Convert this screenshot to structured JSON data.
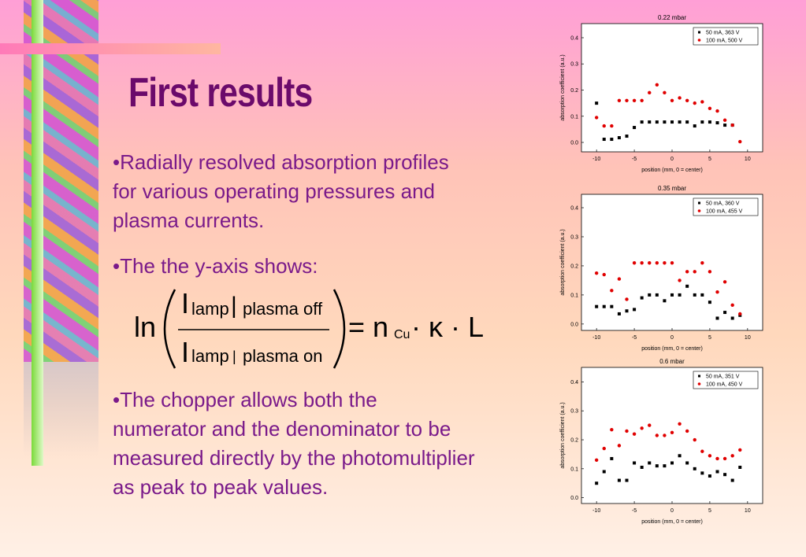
{
  "title": "First results",
  "bullets": [
    "•Radially resolved absorption profiles for various operating pressures and plasma currents.",
    "•The the y-axis shows:",
    "•The chopper allows both the numerator and the denominator to be measured directly by the photomultiplier as peak to peak values."
  ],
  "formula": {
    "ln": "ln",
    "I_num": "I",
    "lamp_num": "lamp",
    "bar_num": "|",
    "cond_num": "plasma off",
    "I_den": "I",
    "lamp_den": "lamp",
    "bar_den": "|",
    "cond_den": "plasma on",
    "eq": "= n",
    "sub": "Cu",
    "rest": "· κ · L"
  },
  "chart_data": [
    {
      "type": "scatter",
      "title": "0.22 mbar",
      "x_label": "position (mm, 0 = center)",
      "y_label": "absorption coefficient (a.u.)",
      "x": [
        -10,
        -9,
        -8,
        -7,
        -6,
        -5,
        -4,
        -3,
        -2,
        -1,
        0,
        1,
        2,
        3,
        4,
        5,
        6,
        7,
        8,
        9
      ],
      "series": [
        {
          "name": "50 mA, 363 V",
          "color": "#000000",
          "marker": "square",
          "values": [
            0.15,
            0.012,
            0.012,
            0.018,
            0.024,
            0.057,
            0.078,
            0.078,
            0.078,
            0.078,
            0.078,
            0.078,
            0.078,
            0.063,
            0.078,
            0.078,
            0.075,
            0.066,
            0.066,
            null
          ]
        },
        {
          "name": "100 mA, 500 V",
          "color": "#e00000",
          "marker": "circle",
          "values": [
            0.095,
            0.063,
            0.063,
            0.16,
            0.16,
            0.16,
            0.16,
            0.19,
            0.22,
            0.19,
            0.16,
            0.17,
            0.16,
            0.15,
            0.155,
            0.13,
            0.12,
            0.085,
            0.066,
            0.003
          ]
        }
      ],
      "xlim": [
        -12,
        12
      ],
      "ylim": [
        -0.036,
        0.454
      ],
      "xticks": [
        -10,
        -5,
        0,
        5,
        10
      ],
      "yticks": [
        {
          "value": 0,
          "label": "0.0"
        },
        0.1,
        0.2,
        0.3,
        0.4
      ],
      "legend": "upper right"
    },
    {
      "type": "scatter",
      "title": "0.35 mbar",
      "x_label": "position (mm, 0 = center)",
      "y_label": "absorption coefficient (a.u.)",
      "x": [
        -10,
        -9,
        -8,
        -7,
        -6,
        -5,
        -4,
        -3,
        -2,
        -1,
        0,
        1,
        2,
        3,
        4,
        5,
        6,
        7,
        8,
        9
      ],
      "series": [
        {
          "name": "50 mA, 360 V",
          "color": "#000000",
          "marker": "square",
          "values": [
            0.06,
            0.06,
            0.06,
            0.035,
            0.045,
            0.05,
            0.09,
            0.1,
            0.1,
            0.08,
            0.1,
            0.1,
            0.13,
            0.1,
            0.1,
            0.075,
            0.02,
            0.04,
            0.02,
            0.03
          ]
        },
        {
          "name": "100 mA, 455 V",
          "color": "#e00000",
          "marker": "circle",
          "values": [
            0.175,
            0.17,
            0.115,
            0.155,
            0.085,
            0.21,
            0.21,
            0.21,
            0.21,
            0.21,
            0.21,
            0.15,
            0.18,
            0.18,
            0.21,
            0.18,
            0.11,
            0.145,
            0.065,
            0.035
          ]
        }
      ],
      "xlim": [
        -12,
        12
      ],
      "ylim": [
        -0.022,
        0.446
      ],
      "xticks": [
        -10,
        -5,
        0,
        5,
        10
      ],
      "yticks": [
        {
          "value": 0,
          "label": "0.0"
        },
        0.1,
        0.2,
        0.3,
        0.4
      ],
      "legend": "upper right"
    },
    {
      "type": "scatter",
      "title": "0.6 mbar",
      "x_label": "position (mm, 0 = center)",
      "y_label": "absorption coefficient (a.u.)",
      "x": [
        -10,
        -9,
        -8,
        -7,
        -6,
        -5,
        -4,
        -3,
        -2,
        -1,
        0,
        1,
        2,
        3,
        4,
        5,
        6,
        7,
        8,
        9
      ],
      "series": [
        {
          "name": "50 mA, 351 V",
          "color": "#000000",
          "marker": "square",
          "values": [
            0.05,
            0.09,
            0.135,
            0.06,
            0.06,
            0.12,
            0.105,
            0.12,
            0.11,
            0.11,
            0.12,
            0.145,
            0.12,
            0.1,
            0.085,
            0.075,
            0.09,
            0.08,
            0.06,
            0.105
          ]
        },
        {
          "name": "100 mA, 450 V",
          "color": "#e00000",
          "marker": "circle",
          "values": [
            0.13,
            0.17,
            0.235,
            0.18,
            0.23,
            0.22,
            0.24,
            0.25,
            0.215,
            0.215,
            0.225,
            0.255,
            0.23,
            0.2,
            0.16,
            0.145,
            0.135,
            0.135,
            0.145,
            0.165
          ]
        }
      ],
      "xlim": [
        -12,
        12
      ],
      "ylim": [
        -0.02,
        0.45
      ],
      "xticks": [
        -10,
        -5,
        0,
        5,
        10
      ],
      "yticks": [
        {
          "value": 0,
          "label": "0.0"
        },
        0.1,
        0.2,
        0.3,
        0.4
      ],
      "legend": "upper right"
    }
  ]
}
